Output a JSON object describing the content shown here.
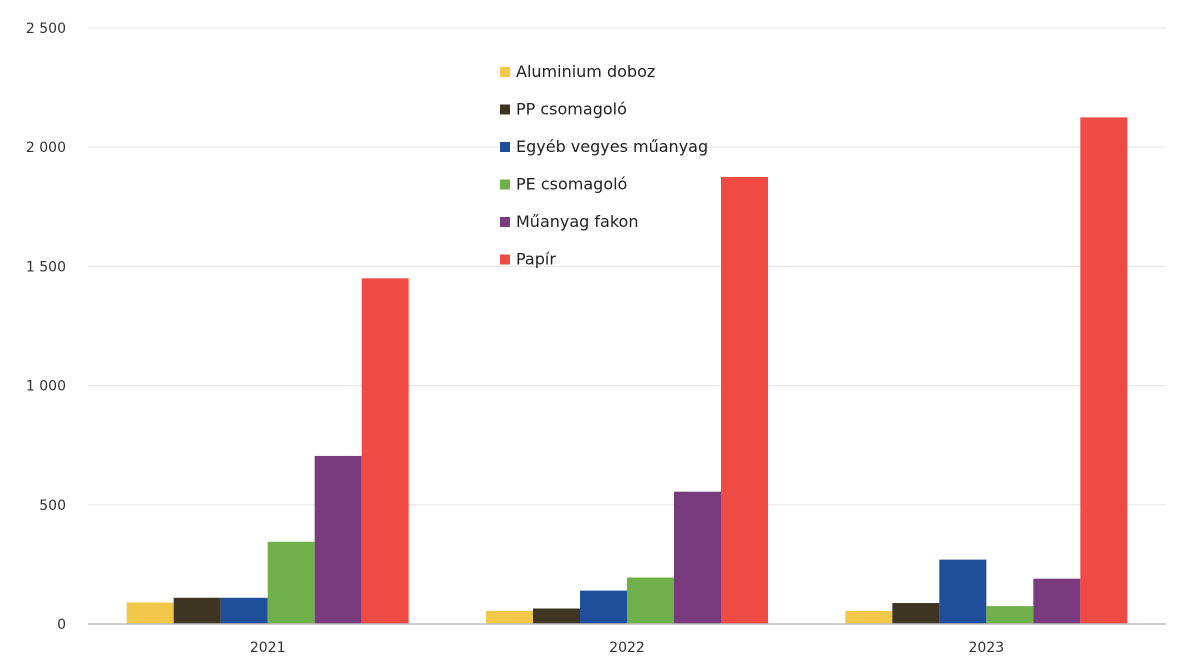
{
  "chart_data": {
    "type": "bar",
    "title": "",
    "xlabel": "",
    "ylabel": "",
    "categories": [
      "2021",
      "2022",
      "2023"
    ],
    "ylim": [
      0,
      2500
    ],
    "yticks": [
      0,
      500,
      1000,
      1500,
      2000,
      2500
    ],
    "ytick_labels": [
      "0",
      "500",
      "1 000",
      "1 500",
      "2 000",
      "2 500"
    ],
    "grid": true,
    "legend_position": "top-center",
    "series": [
      {
        "name": "Aluminium doboz",
        "color": "#f2c84b",
        "values": [
          90,
          55,
          55
        ]
      },
      {
        "name": "PP csomagoló",
        "color": "#3d3422",
        "values": [
          110,
          65,
          88
        ]
      },
      {
        "name": "Egyéb vegyes műanyag",
        "color": "#1f4e9a",
        "values": [
          110,
          140,
          270
        ]
      },
      {
        "name": "PE csomagoló",
        "color": "#6fb04a",
        "values": [
          345,
          195,
          75
        ]
      },
      {
        "name": "Műanyag fakon",
        "color": "#7a3a7e",
        "values": [
          705,
          555,
          190
        ]
      },
      {
        "name": "Papír",
        "color": "#f04a44",
        "values": [
          1450,
          1875,
          2125
        ]
      }
    ]
  }
}
